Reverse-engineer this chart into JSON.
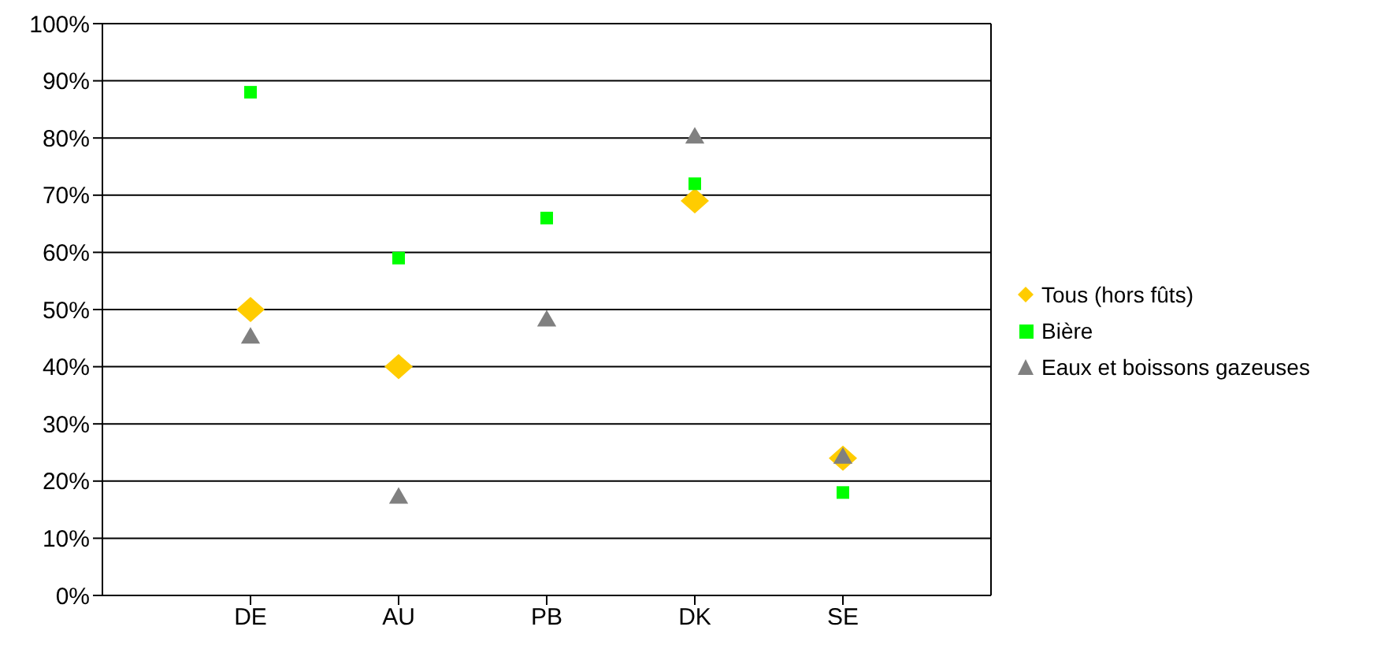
{
  "chart_data": {
    "type": "scatter",
    "categories": [
      "DE",
      "AU",
      "PB",
      "DK",
      "SE"
    ],
    "series": [
      {
        "name": "Tous (hors fûts)",
        "color": "#ffcc00",
        "marker": "diamond",
        "values": [
          50,
          40,
          null,
          69,
          24
        ]
      },
      {
        "name": "Bière",
        "color": "#00ff00",
        "marker": "square",
        "values": [
          88,
          59,
          66,
          72,
          18
        ]
      },
      {
        "name": "Eaux et boissons gazeuses",
        "color": "#808080",
        "marker": "triangle",
        "values": [
          45,
          17,
          48,
          80,
          24
        ]
      }
    ],
    "ylim": [
      0,
      100
    ],
    "yticks": [
      {
        "value": 0,
        "label": "0%"
      },
      {
        "value": 10,
        "label": "10%"
      },
      {
        "value": 20,
        "label": "20%"
      },
      {
        "value": 30,
        "label": "30%"
      },
      {
        "value": 40,
        "label": "40%"
      },
      {
        "value": 50,
        "label": "50%"
      },
      {
        "value": 60,
        "label": "60%"
      },
      {
        "value": 70,
        "label": "70%"
      },
      {
        "value": 80,
        "label": "80%"
      },
      {
        "value": 90,
        "label": "90%"
      },
      {
        "value": 100,
        "label": "100%"
      }
    ],
    "grid": "y",
    "legend": "right"
  }
}
